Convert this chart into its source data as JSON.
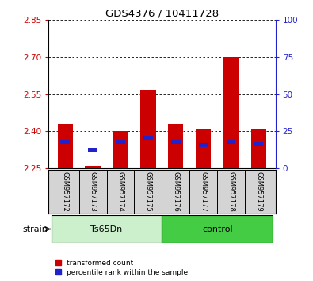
{
  "title": "GDS4376 / 10411728",
  "samples": [
    "GSM957172",
    "GSM957173",
    "GSM957174",
    "GSM957175",
    "GSM957176",
    "GSM957177",
    "GSM957178",
    "GSM957179"
  ],
  "red_values": [
    2.43,
    2.26,
    2.4,
    2.565,
    2.43,
    2.41,
    2.7,
    2.41
  ],
  "blue_values": [
    2.355,
    2.325,
    2.355,
    2.375,
    2.355,
    2.345,
    2.36,
    2.35
  ],
  "ylim_left": [
    2.25,
    2.85
  ],
  "ylim_right": [
    0,
    100
  ],
  "yticks_left": [
    2.25,
    2.4,
    2.55,
    2.7,
    2.85
  ],
  "yticks_right": [
    0,
    25,
    50,
    75,
    100
  ],
  "bar_bottom": 2.25,
  "bar_width": 0.55,
  "red_color": "#cc0000",
  "blue_color": "#2222cc",
  "left_tick_color": "#cc0000",
  "right_tick_color": "#2222cc",
  "ts65dn_color": "#ccf0cc",
  "control_color": "#44cc44",
  "sample_bg_color": "#d4d4d4",
  "legend_red": "transformed count",
  "legend_blue": "percentile rank within the sample",
  "strain_label": "strain"
}
